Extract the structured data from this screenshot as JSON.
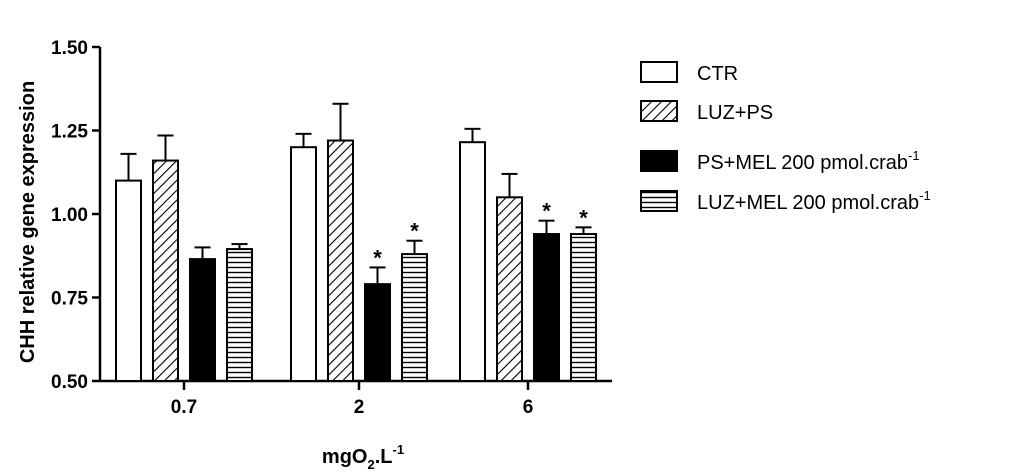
{
  "chart_data": {
    "type": "bar",
    "ylabel": "CHH relative gene expression",
    "xlabel": {
      "main": "mgO",
      "sub": "2",
      "mid": ".L",
      "sup": "-1"
    },
    "ylim": [
      0.5,
      1.5
    ],
    "yticks": [
      "0.50",
      "0.75",
      "1.00",
      "1.25",
      "1.50"
    ],
    "categories": [
      "0.7",
      "2",
      "6"
    ],
    "series": [
      {
        "name": "CTR",
        "pattern": "open",
        "values": [
          1.1,
          1.2,
          1.215
        ],
        "errors": [
          0.08,
          0.04,
          0.04
        ],
        "significant": [
          false,
          false,
          false
        ]
      },
      {
        "name": "LUZ+PS",
        "pattern": "diagonal",
        "values": [
          1.16,
          1.22,
          1.05
        ],
        "errors": [
          0.075,
          0.11,
          0.07
        ],
        "significant": [
          false,
          false,
          false
        ]
      },
      {
        "name": "PS+MEL 200 pmol.crab",
        "sup": "-1",
        "pattern": "solid",
        "values": [
          0.865,
          0.79,
          0.94
        ],
        "errors": [
          0.035,
          0.05,
          0.04
        ],
        "significant": [
          false,
          true,
          true
        ]
      },
      {
        "name": "LUZ+MEL 200 pmol.crab",
        "sup": "-1",
        "pattern": "horizontal",
        "values": [
          0.895,
          0.88,
          0.94
        ],
        "errors": [
          0.015,
          0.04,
          0.02
        ],
        "significant": [
          false,
          true,
          true
        ]
      }
    ],
    "significance_marker": "*",
    "grid": false,
    "legend_position": "right"
  }
}
